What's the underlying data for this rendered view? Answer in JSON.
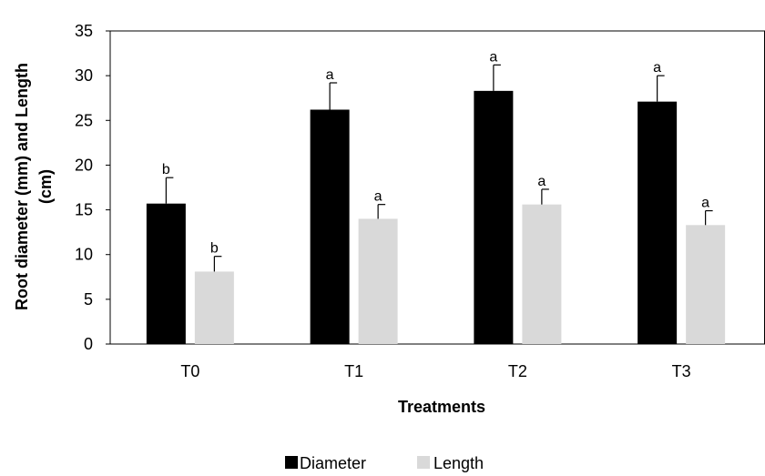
{
  "chart_data": {
    "type": "bar",
    "categories": [
      "T0",
      "T1",
      "T2",
      "T3"
    ],
    "series": [
      {
        "name": "Diameter",
        "color": "#000000",
        "values": [
          15.7,
          26.2,
          28.3,
          27.1
        ],
        "error": [
          2.9,
          3.0,
          2.9,
          2.9
        ],
        "letters": [
          "b",
          "a",
          "a",
          "a"
        ]
      },
      {
        "name": "Length",
        "color": "#d9d9d9",
        "values": [
          8.1,
          14.0,
          15.6,
          13.3
        ],
        "error": [
          1.7,
          1.6,
          1.7,
          1.6
        ],
        "letters": [
          "b",
          "a",
          "a",
          "a"
        ]
      }
    ],
    "xlabel": "Treatments",
    "ylabel_lines": [
      "Root diameter (mm) and Length",
      "(cm)"
    ],
    "ylim": [
      0,
      35
    ],
    "yticks": [
      "0",
      "5",
      "10",
      "15",
      "20",
      "25",
      "30",
      "35"
    ],
    "grid": false,
    "legend": "bottom"
  }
}
